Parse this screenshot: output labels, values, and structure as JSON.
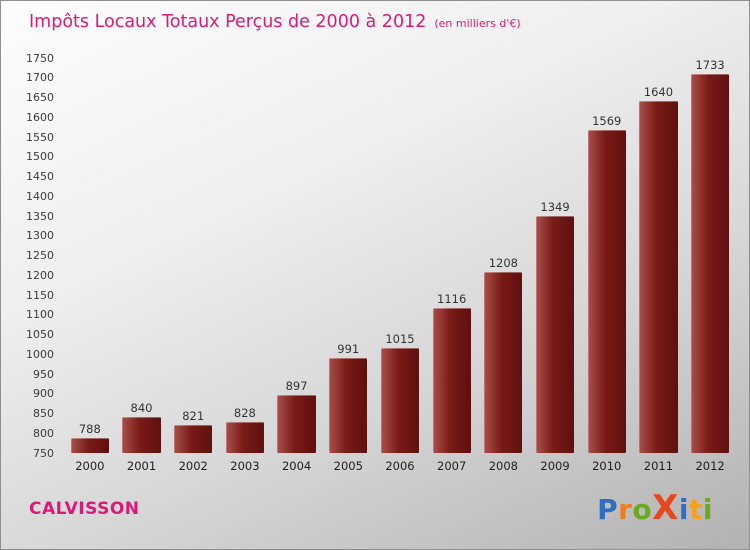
{
  "header": {
    "title": "Impôts Locaux Totaux Perçus de 2000 à 2012",
    "subtitle": "(en milliers d'€)"
  },
  "chart_data": {
    "type": "bar",
    "categories": [
      "2000",
      "2001",
      "2002",
      "2003",
      "2004",
      "2005",
      "2006",
      "2007",
      "2008",
      "2009",
      "2010",
      "2011",
      "2012"
    ],
    "values": [
      788,
      840,
      821,
      828,
      897,
      991,
      1015,
      1116,
      1208,
      1349,
      1569,
      1640,
      1733
    ],
    "title": "Impôts Locaux Totaux Perçus de 2000 à 2012 (en milliers d'€)",
    "xlabel": "",
    "ylabel": "",
    "ylim": [
      750,
      1750
    ],
    "ytick_step": 50,
    "grid": false,
    "legend": "none",
    "bar_colors": [
      "#a9504c",
      "#7a1b17",
      "#5e100f"
    ]
  },
  "colors": {
    "accent": "#d81b7a",
    "value_label": "#333333",
    "tick_label": "#3c3c3c",
    "background_top": "#fdfdfd",
    "background_bottom": "#b2b2b2"
  },
  "footer": {
    "place": "CALVISSON",
    "logo_letters": [
      {
        "ch": "P",
        "color": "#2f6fc1",
        "size": 28
      },
      {
        "ch": "r",
        "color": "#ef7d1a",
        "size": 28
      },
      {
        "ch": "o",
        "color": "#6aaa1e",
        "size": 28
      },
      {
        "ch": "X",
        "color": "#e8471b",
        "size": 34
      },
      {
        "ch": "i",
        "color": "#2f6fc1",
        "size": 28
      },
      {
        "ch": "t",
        "color": "#f5a11c",
        "size": 28
      },
      {
        "ch": "i",
        "color": "#6aaa1e",
        "size": 28
      }
    ]
  }
}
